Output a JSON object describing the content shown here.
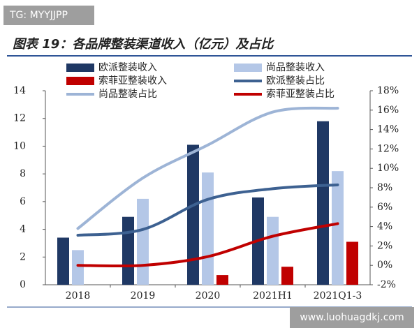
{
  "watermarks": [
    "TG: MYYJJPP",
    "www.luohuagdkj.com"
  ],
  "chart_data": {
    "type": "combo",
    "title": "图表 19：各品牌整装渠道收入（亿元）及占比",
    "categories": [
      "2018",
      "2019",
      "2020",
      "2021H1",
      "2021Q1-3"
    ],
    "series": [
      {
        "name": "欧派整装收入",
        "type": "bar",
        "color": "#1f3864",
        "values": [
          3.4,
          4.9,
          10.1,
          6.3,
          11.8
        ]
      },
      {
        "name": "尚品整装收入",
        "type": "bar",
        "color": "#b4c7e7",
        "values": [
          2.5,
          6.2,
          8.1,
          4.9,
          8.2
        ]
      },
      {
        "name": "索菲亚整装收入",
        "type": "bar",
        "color": "#c00000",
        "values": [
          0,
          0,
          0.7,
          1.3,
          3.1
        ]
      },
      {
        "name": "欧派整装占比",
        "type": "line",
        "axis": "y2",
        "color": "#3d6191",
        "values": [
          3.1,
          3.7,
          6.8,
          7.9,
          8.3
        ]
      },
      {
        "name": "尚品整装占比",
        "type": "line",
        "axis": "y2",
        "color": "#9db4d6",
        "values": [
          3.8,
          9.0,
          12.4,
          15.8,
          16.2
        ]
      },
      {
        "name": "索菲亚整装占比",
        "type": "line",
        "axis": "y2",
        "color": "#c00000",
        "values": [
          0,
          0,
          0.9,
          3.0,
          4.3
        ]
      }
    ],
    "ylim": [
      0,
      14
    ],
    "yticks": [
      0,
      2,
      4,
      6,
      8,
      10,
      12,
      14
    ],
    "y2lim": [
      -2,
      18
    ],
    "y2ticks": [
      {
        "value": -2,
        "label": "-2%"
      },
      {
        "value": 0,
        "label": "0%"
      },
      {
        "value": 2,
        "label": "2%"
      },
      {
        "value": 4,
        "label": "4%"
      },
      {
        "value": 6,
        "label": "6%"
      },
      {
        "value": 8,
        "label": "8%"
      },
      {
        "value": 10,
        "label": "10%"
      },
      {
        "value": 12,
        "label": "12%"
      },
      {
        "value": 14,
        "label": "14%"
      },
      {
        "value": 16,
        "label": "16%"
      },
      {
        "value": 18,
        "label": "18%"
      }
    ]
  }
}
